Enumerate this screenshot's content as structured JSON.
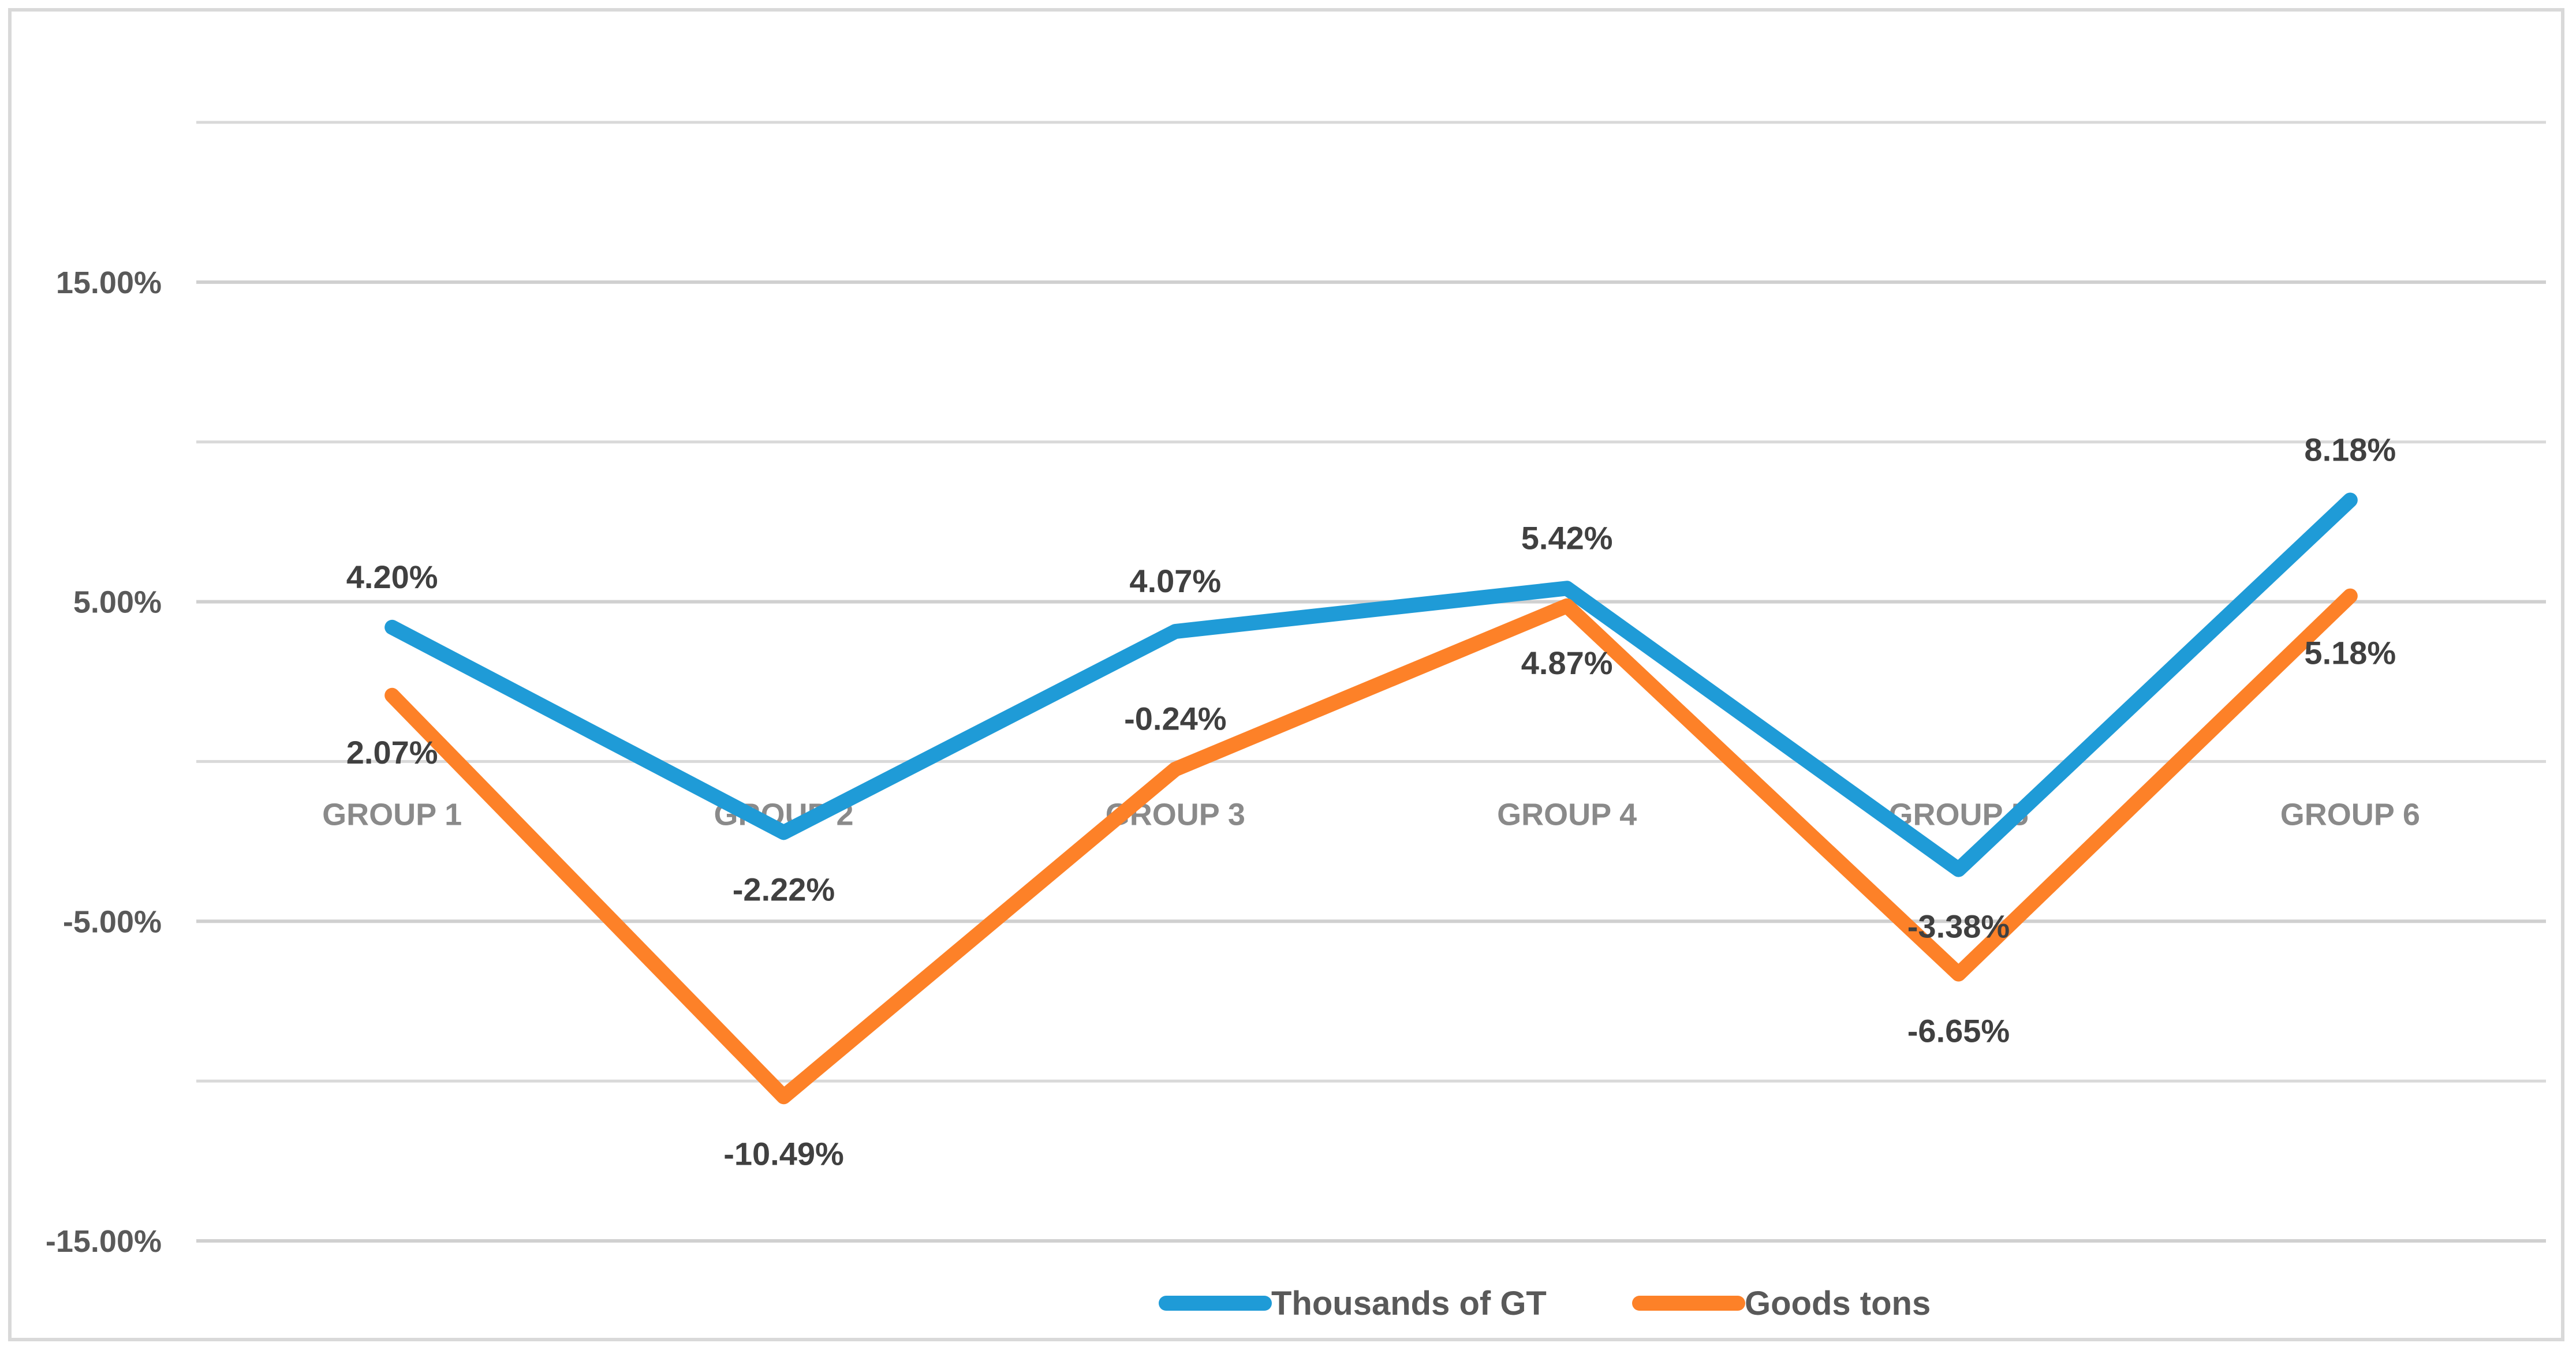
{
  "chart_data": {
    "type": "line",
    "title": "",
    "xlabel": "",
    "ylabel": "",
    "categories": [
      "GROUP 1",
      "GROUP 2",
      "GROUP 3",
      "GROUP 4",
      "GROUP 5",
      "GROUP 6"
    ],
    "ylim": [
      -15,
      20
    ],
    "yticks": [
      {
        "value": 15,
        "label": "15.00%"
      },
      {
        "value": 5,
        "label": "5.00%"
      },
      {
        "value": -5,
        "label": "-5.00%"
      },
      {
        "value": -15,
        "label": "-15.00%"
      }
    ],
    "minor_gridlines": [
      20,
      10,
      0,
      -10
    ],
    "grid": true,
    "legend": "bottom-center",
    "series": [
      {
        "name": "Thousands of GT",
        "color": "#1f9bd7",
        "values": [
          4.2,
          -2.22,
          4.07,
          5.42,
          -3.38,
          8.18
        ],
        "labels": [
          "4.20%",
          "-2.22%",
          "4.07%",
          "5.42%",
          "-3.38%",
          "8.18%"
        ],
        "label_pos": [
          "above",
          "below",
          "above",
          "above",
          "below",
          "above"
        ]
      },
      {
        "name": "Goods tons",
        "color": "#fd8128",
        "values": [
          2.07,
          -10.49,
          -0.24,
          4.87,
          -6.65,
          5.18
        ],
        "labels": [
          "2.07%",
          "-10.49%",
          "-0.24%",
          "4.87%",
          "-6.65%",
          "5.18%"
        ],
        "label_pos": [
          "below",
          "below",
          "above",
          "below",
          "below",
          "below"
        ]
      }
    ]
  }
}
